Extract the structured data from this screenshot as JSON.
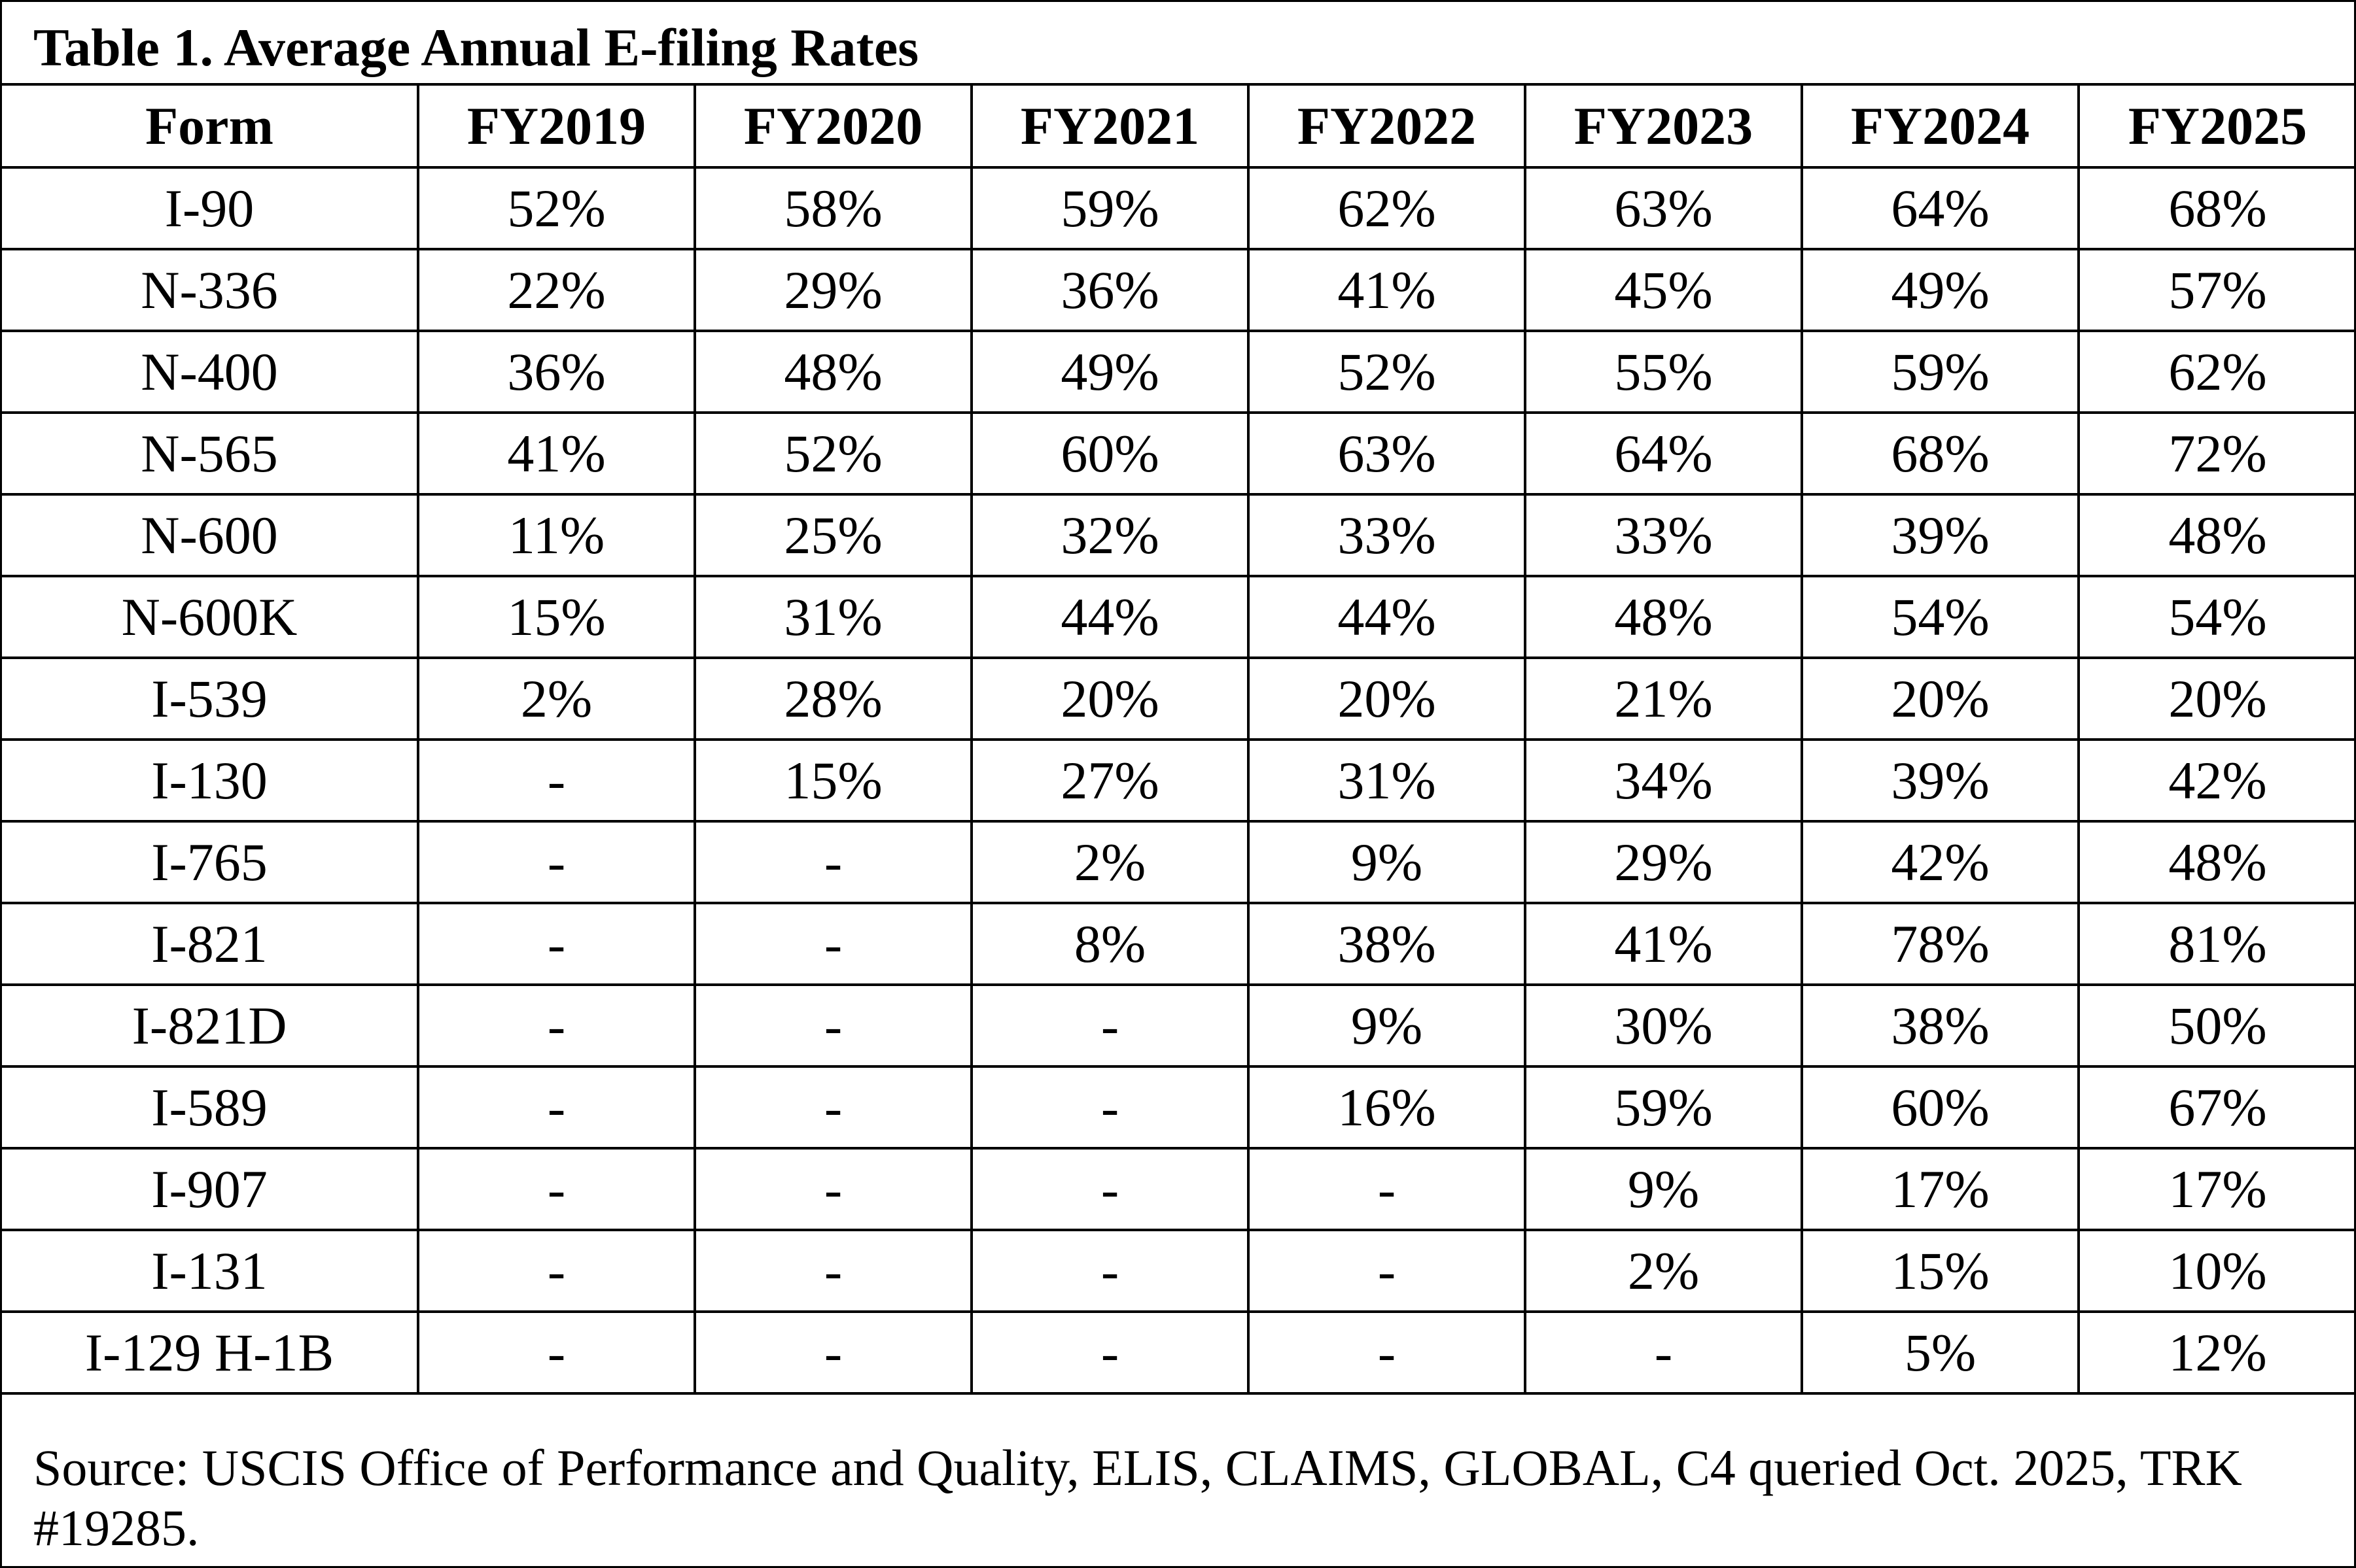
{
  "table": {
    "title": "Table 1. Average Annual E-filing Rates",
    "columns": [
      "Form",
      "FY2019",
      "FY2020",
      "FY2021",
      "FY2022",
      "FY2023",
      "FY2024",
      "FY2025"
    ],
    "rows": [
      [
        "I-90",
        "52%",
        "58%",
        "59%",
        "62%",
        "63%",
        "64%",
        "68%"
      ],
      [
        "N-336",
        "22%",
        "29%",
        "36%",
        "41%",
        "45%",
        "49%",
        "57%"
      ],
      [
        "N-400",
        "36%",
        "48%",
        "49%",
        "52%",
        "55%",
        "59%",
        "62%"
      ],
      [
        "N-565",
        "41%",
        "52%",
        "60%",
        "63%",
        "64%",
        "68%",
        "72%"
      ],
      [
        "N-600",
        "11%",
        "25%",
        "32%",
        "33%",
        "33%",
        "39%",
        "48%"
      ],
      [
        "N-600K",
        "15%",
        "31%",
        "44%",
        "44%",
        "48%",
        "54%",
        "54%"
      ],
      [
        "I-539",
        "2%",
        "28%",
        "20%",
        "20%",
        "21%",
        "20%",
        "20%"
      ],
      [
        "I-130",
        "-",
        "15%",
        "27%",
        "31%",
        "34%",
        "39%",
        "42%"
      ],
      [
        "I-765",
        "-",
        "-",
        "2%",
        "9%",
        "29%",
        "42%",
        "48%"
      ],
      [
        "I-821",
        "-",
        "-",
        "8%",
        "38%",
        "41%",
        "78%",
        "81%"
      ],
      [
        "I-821D",
        "-",
        "-",
        "-",
        "9%",
        "30%",
        "38%",
        "50%"
      ],
      [
        "I-589",
        "-",
        "-",
        "-",
        "16%",
        "59%",
        "60%",
        "67%"
      ],
      [
        "I-907",
        "-",
        "-",
        "-",
        "-",
        "9%",
        "17%",
        "17%"
      ],
      [
        "I-131",
        "-",
        "-",
        "-",
        "-",
        "2%",
        "15%",
        "10%"
      ],
      [
        "I-129 H-1B",
        "-",
        "-",
        "-",
        "-",
        "-",
        "5%",
        "12%"
      ]
    ],
    "source": "Source: USCIS Office of Performance and Quality, ELIS, CLAIMS, GLOBAL, C4 queried Oct. 2025, TRK #19285."
  }
}
